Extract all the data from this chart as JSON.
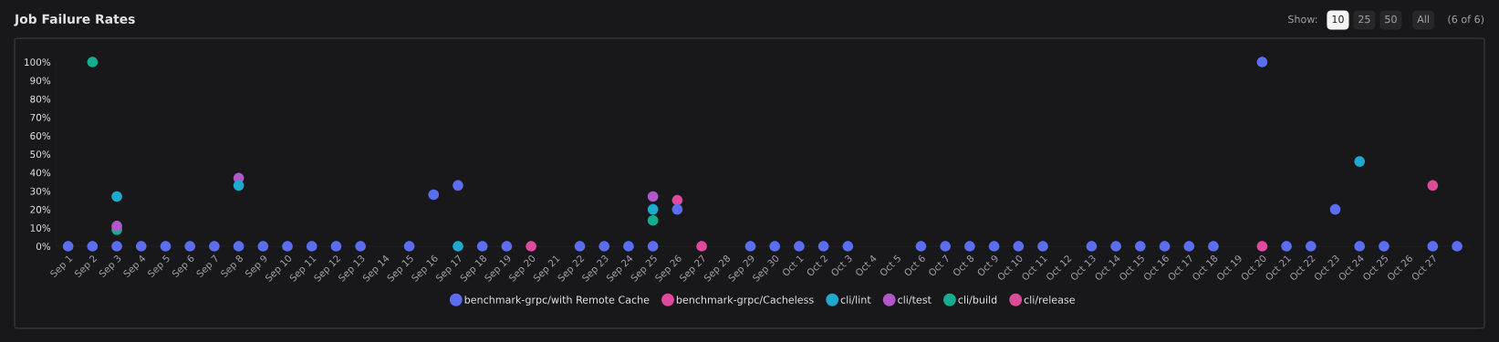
{
  "chart_data": {
    "type": "scatter",
    "title": "Job Failure Rates",
    "annotations": [
      "Show:",
      "10",
      "25",
      "50",
      "All",
      "(6 of 6)"
    ],
    "categories": [
      "Sep 1",
      "Sep 2",
      "Sep 3",
      "Sep 4",
      "Sep 5",
      "Sep 6",
      "Sep 7",
      "Sep 8",
      "Sep 9",
      "Sep 10",
      "Sep 11",
      "Sep 12",
      "Sep 13",
      "Sep 14",
      "Sep 15",
      "Sep 16",
      "Sep 17",
      "Sep 18",
      "Sep 19",
      "Sep 20",
      "Sep 21",
      "Sep 22",
      "Sep 23",
      "Sep 24",
      "Sep 25",
      "Sep 26",
      "Sep 27",
      "Sep 28",
      "Sep 29",
      "Sep 30",
      "Oct 1",
      "Oct 2",
      "Oct 3",
      "Oct 4",
      "Oct 5",
      "Oct 6",
      "Oct 7",
      "Oct 8",
      "Oct 9",
      "Oct 10",
      "Oct 11",
      "Oct 12",
      "Oct 13",
      "Oct 14",
      "Oct 15",
      "Oct 16",
      "Oct 17",
      "Oct 18",
      "Oct 19",
      "Oct 20",
      "Oct 21",
      "Oct 22",
      "Oct 23",
      "Oct 24",
      "Oct 25",
      "Oct 26",
      "Oct 27",
      null
    ],
    "series": [
      {
        "name": "benchmark-grpc/with Remote Cache",
        "color": "#5b6ef0",
        "values": [
          0,
          0,
          0,
          0,
          0,
          0,
          0,
          0,
          0,
          0,
          0,
          0,
          0,
          null,
          0,
          28,
          33,
          0,
          0,
          null,
          null,
          0,
          0,
          0,
          0,
          20,
          null,
          null,
          0,
          0,
          0,
          0,
          0,
          null,
          null,
          0,
          0,
          0,
          0,
          0,
          0,
          null,
          0,
          0,
          0,
          0,
          0,
          0,
          null,
          100,
          0,
          0,
          20,
          0,
          0,
          null,
          0,
          0
        ]
      },
      {
        "name": "benchmark-grpc/Cacheless",
        "color": "#e04a9e",
        "values": [
          null,
          null,
          null,
          null,
          null,
          null,
          null,
          null,
          null,
          null,
          null,
          null,
          null,
          null,
          null,
          null,
          null,
          null,
          null,
          0,
          null,
          null,
          null,
          null,
          null,
          25,
          0,
          null,
          null,
          null,
          null,
          null,
          null,
          null,
          null,
          null,
          null,
          null,
          null,
          null,
          null,
          null,
          null,
          null,
          null,
          null,
          null,
          null,
          null,
          0,
          null,
          null,
          null,
          null,
          null,
          null,
          null,
          null
        ]
      },
      {
        "name": "cli/lint",
        "color": "#1fa9cf",
        "values": [
          null,
          null,
          27,
          null,
          null,
          null,
          null,
          33,
          null,
          null,
          null,
          null,
          null,
          null,
          null,
          null,
          0,
          null,
          null,
          null,
          null,
          null,
          null,
          null,
          20,
          null,
          null,
          null,
          null,
          null,
          null,
          null,
          null,
          null,
          null,
          null,
          null,
          null,
          null,
          null,
          null,
          null,
          null,
          null,
          null,
          null,
          null,
          null,
          null,
          null,
          null,
          null,
          null,
          46,
          null,
          null,
          null,
          null
        ]
      },
      {
        "name": "cli/test",
        "color": "#b257c9",
        "values": [
          null,
          null,
          11,
          null,
          null,
          null,
          null,
          37,
          null,
          null,
          null,
          null,
          null,
          null,
          null,
          null,
          null,
          null,
          null,
          null,
          null,
          null,
          null,
          null,
          27,
          null,
          null,
          null,
          null,
          null,
          null,
          null,
          null,
          null,
          null,
          null,
          null,
          null,
          null,
          null,
          null,
          null,
          null,
          null,
          null,
          null,
          null,
          null,
          null,
          null,
          null,
          null,
          null,
          null,
          null,
          null,
          null,
          null
        ]
      },
      {
        "name": "cli/build",
        "color": "#14ad90",
        "values": [
          null,
          100,
          9,
          null,
          null,
          null,
          null,
          null,
          null,
          null,
          null,
          null,
          null,
          null,
          null,
          null,
          null,
          null,
          null,
          null,
          null,
          null,
          null,
          null,
          14,
          null,
          null,
          null,
          null,
          null,
          null,
          null,
          null,
          null,
          null,
          null,
          null,
          null,
          null,
          null,
          null,
          null,
          null,
          null,
          null,
          null,
          null,
          null,
          null,
          null,
          null,
          null,
          null,
          null,
          null,
          null,
          null,
          null
        ]
      },
      {
        "name": "cli/release",
        "color": "#db4c98",
        "values": [
          null,
          null,
          null,
          null,
          null,
          null,
          null,
          null,
          null,
          null,
          null,
          null,
          null,
          null,
          null,
          null,
          null,
          null,
          null,
          null,
          null,
          null,
          null,
          null,
          null,
          null,
          null,
          null,
          null,
          null,
          null,
          null,
          null,
          null,
          null,
          null,
          null,
          null,
          null,
          null,
          null,
          null,
          null,
          null,
          null,
          null,
          null,
          null,
          null,
          null,
          null,
          null,
          null,
          null,
          null,
          null,
          33,
          null
        ]
      }
    ],
    "ylim": [
      0,
      100
    ],
    "yticks": [
      {
        "value": 0,
        "label": "0%"
      },
      {
        "value": 10,
        "label": "10%"
      },
      {
        "value": 20,
        "label": "20%"
      },
      {
        "value": 30,
        "label": "30%"
      },
      {
        "value": 40,
        "label": "40%"
      },
      {
        "value": 50,
        "label": "50%"
      },
      {
        "value": 60,
        "label": "60%"
      },
      {
        "value": 70,
        "label": "70%"
      },
      {
        "value": 80,
        "label": "80%"
      },
      {
        "value": 90,
        "label": "90%"
      },
      {
        "value": 100,
        "label": "100%"
      }
    ],
    "grid": false,
    "legend": "bottom",
    "marker": "circle"
  }
}
